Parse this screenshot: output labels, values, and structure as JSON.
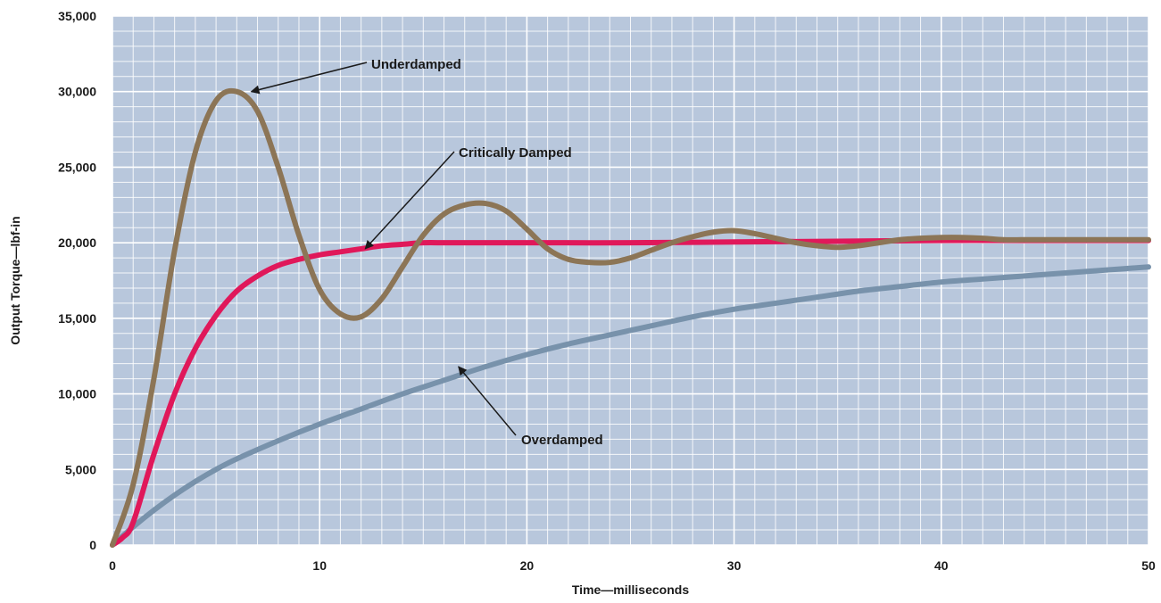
{
  "chart_data": {
    "type": "line",
    "title": "",
    "xlabel": "Time—milliseconds",
    "ylabel": "Output Torque—lbf-in",
    "xlim": [
      0,
      50
    ],
    "ylim": [
      0,
      35000
    ],
    "x_ticks": [
      0,
      10,
      20,
      30,
      40,
      50
    ],
    "x_tick_labels": [
      "0",
      "10",
      "20",
      "30",
      "40",
      "50"
    ],
    "y_ticks": [
      0,
      5000,
      10000,
      15000,
      20000,
      25000,
      30000,
      35000
    ],
    "y_tick_labels": [
      "0",
      "5,000",
      "10,000",
      "15,000",
      "20,000",
      "25,000",
      "30,000",
      "35,000"
    ],
    "grid": true,
    "plot_background": "#b8c7dc",
    "grid_color": "#ffffff",
    "series": [
      {
        "name": "Underdamped",
        "color": "#8c7556",
        "x": [
          0,
          1,
          2,
          3,
          4,
          5,
          6,
          7,
          8,
          9,
          10,
          11,
          12,
          13,
          14,
          15,
          16,
          17,
          18,
          19,
          20,
          21,
          22,
          23,
          24,
          25,
          26,
          27,
          28,
          29,
          30,
          31,
          32,
          33,
          34,
          35,
          36,
          37,
          38,
          39,
          40,
          41,
          42,
          43,
          44,
          45,
          46,
          47,
          48,
          49,
          50
        ],
        "values": [
          0,
          4000,
          11000,
          19500,
          26000,
          29400,
          30000,
          28700,
          25000,
          20500,
          16900,
          15300,
          15100,
          16300,
          18400,
          20500,
          21900,
          22500,
          22600,
          22100,
          20900,
          19600,
          18900,
          18700,
          18700,
          19000,
          19500,
          20000,
          20400,
          20700,
          20800,
          20600,
          20300,
          20000,
          19800,
          19700,
          19800,
          20000,
          20200,
          20300,
          20350,
          20350,
          20300,
          20200,
          20200,
          20200,
          20200,
          20200,
          20200,
          20200,
          20200
        ]
      },
      {
        "name": "Critically Damped",
        "color": "#e0185a",
        "x": [
          0,
          0.5,
          1,
          2,
          3,
          4,
          5,
          6,
          7,
          8,
          9,
          10,
          11,
          12,
          13,
          14,
          15,
          16,
          17,
          18,
          20,
          25,
          30,
          35,
          40,
          45,
          50
        ],
        "values": [
          0,
          500,
          1500,
          6000,
          10000,
          13000,
          15200,
          16800,
          17800,
          18500,
          18900,
          19200,
          19400,
          19600,
          19800,
          19900,
          20000,
          20000,
          20000,
          20000,
          20000,
          20000,
          20050,
          20100,
          20150,
          20150,
          20150
        ]
      },
      {
        "name": "Overdamped",
        "color": "#7892ab",
        "x": [
          0,
          1,
          2,
          3,
          4,
          5,
          6,
          8,
          10,
          12,
          14,
          16,
          18,
          20,
          22,
          24,
          26,
          28,
          30,
          32,
          34,
          36,
          38,
          40,
          42,
          44,
          46,
          48,
          50
        ],
        "values": [
          0,
          1200,
          2300,
          3300,
          4200,
          5000,
          5700,
          6900,
          8000,
          9000,
          10000,
          10900,
          11800,
          12600,
          13300,
          13900,
          14500,
          15100,
          15600,
          16000,
          16400,
          16800,
          17100,
          17400,
          17600,
          17800,
          18000,
          18200,
          18400
        ]
      }
    ],
    "annotations": [
      {
        "text": "Underdamped",
        "arrow_to": [
          6.7,
          30000
        ]
      },
      {
        "text": "Critically Damped",
        "arrow_to": [
          12.2,
          19600
        ]
      },
      {
        "text": "Overdamped",
        "arrow_to": [
          16.7,
          11800
        ]
      }
    ]
  }
}
